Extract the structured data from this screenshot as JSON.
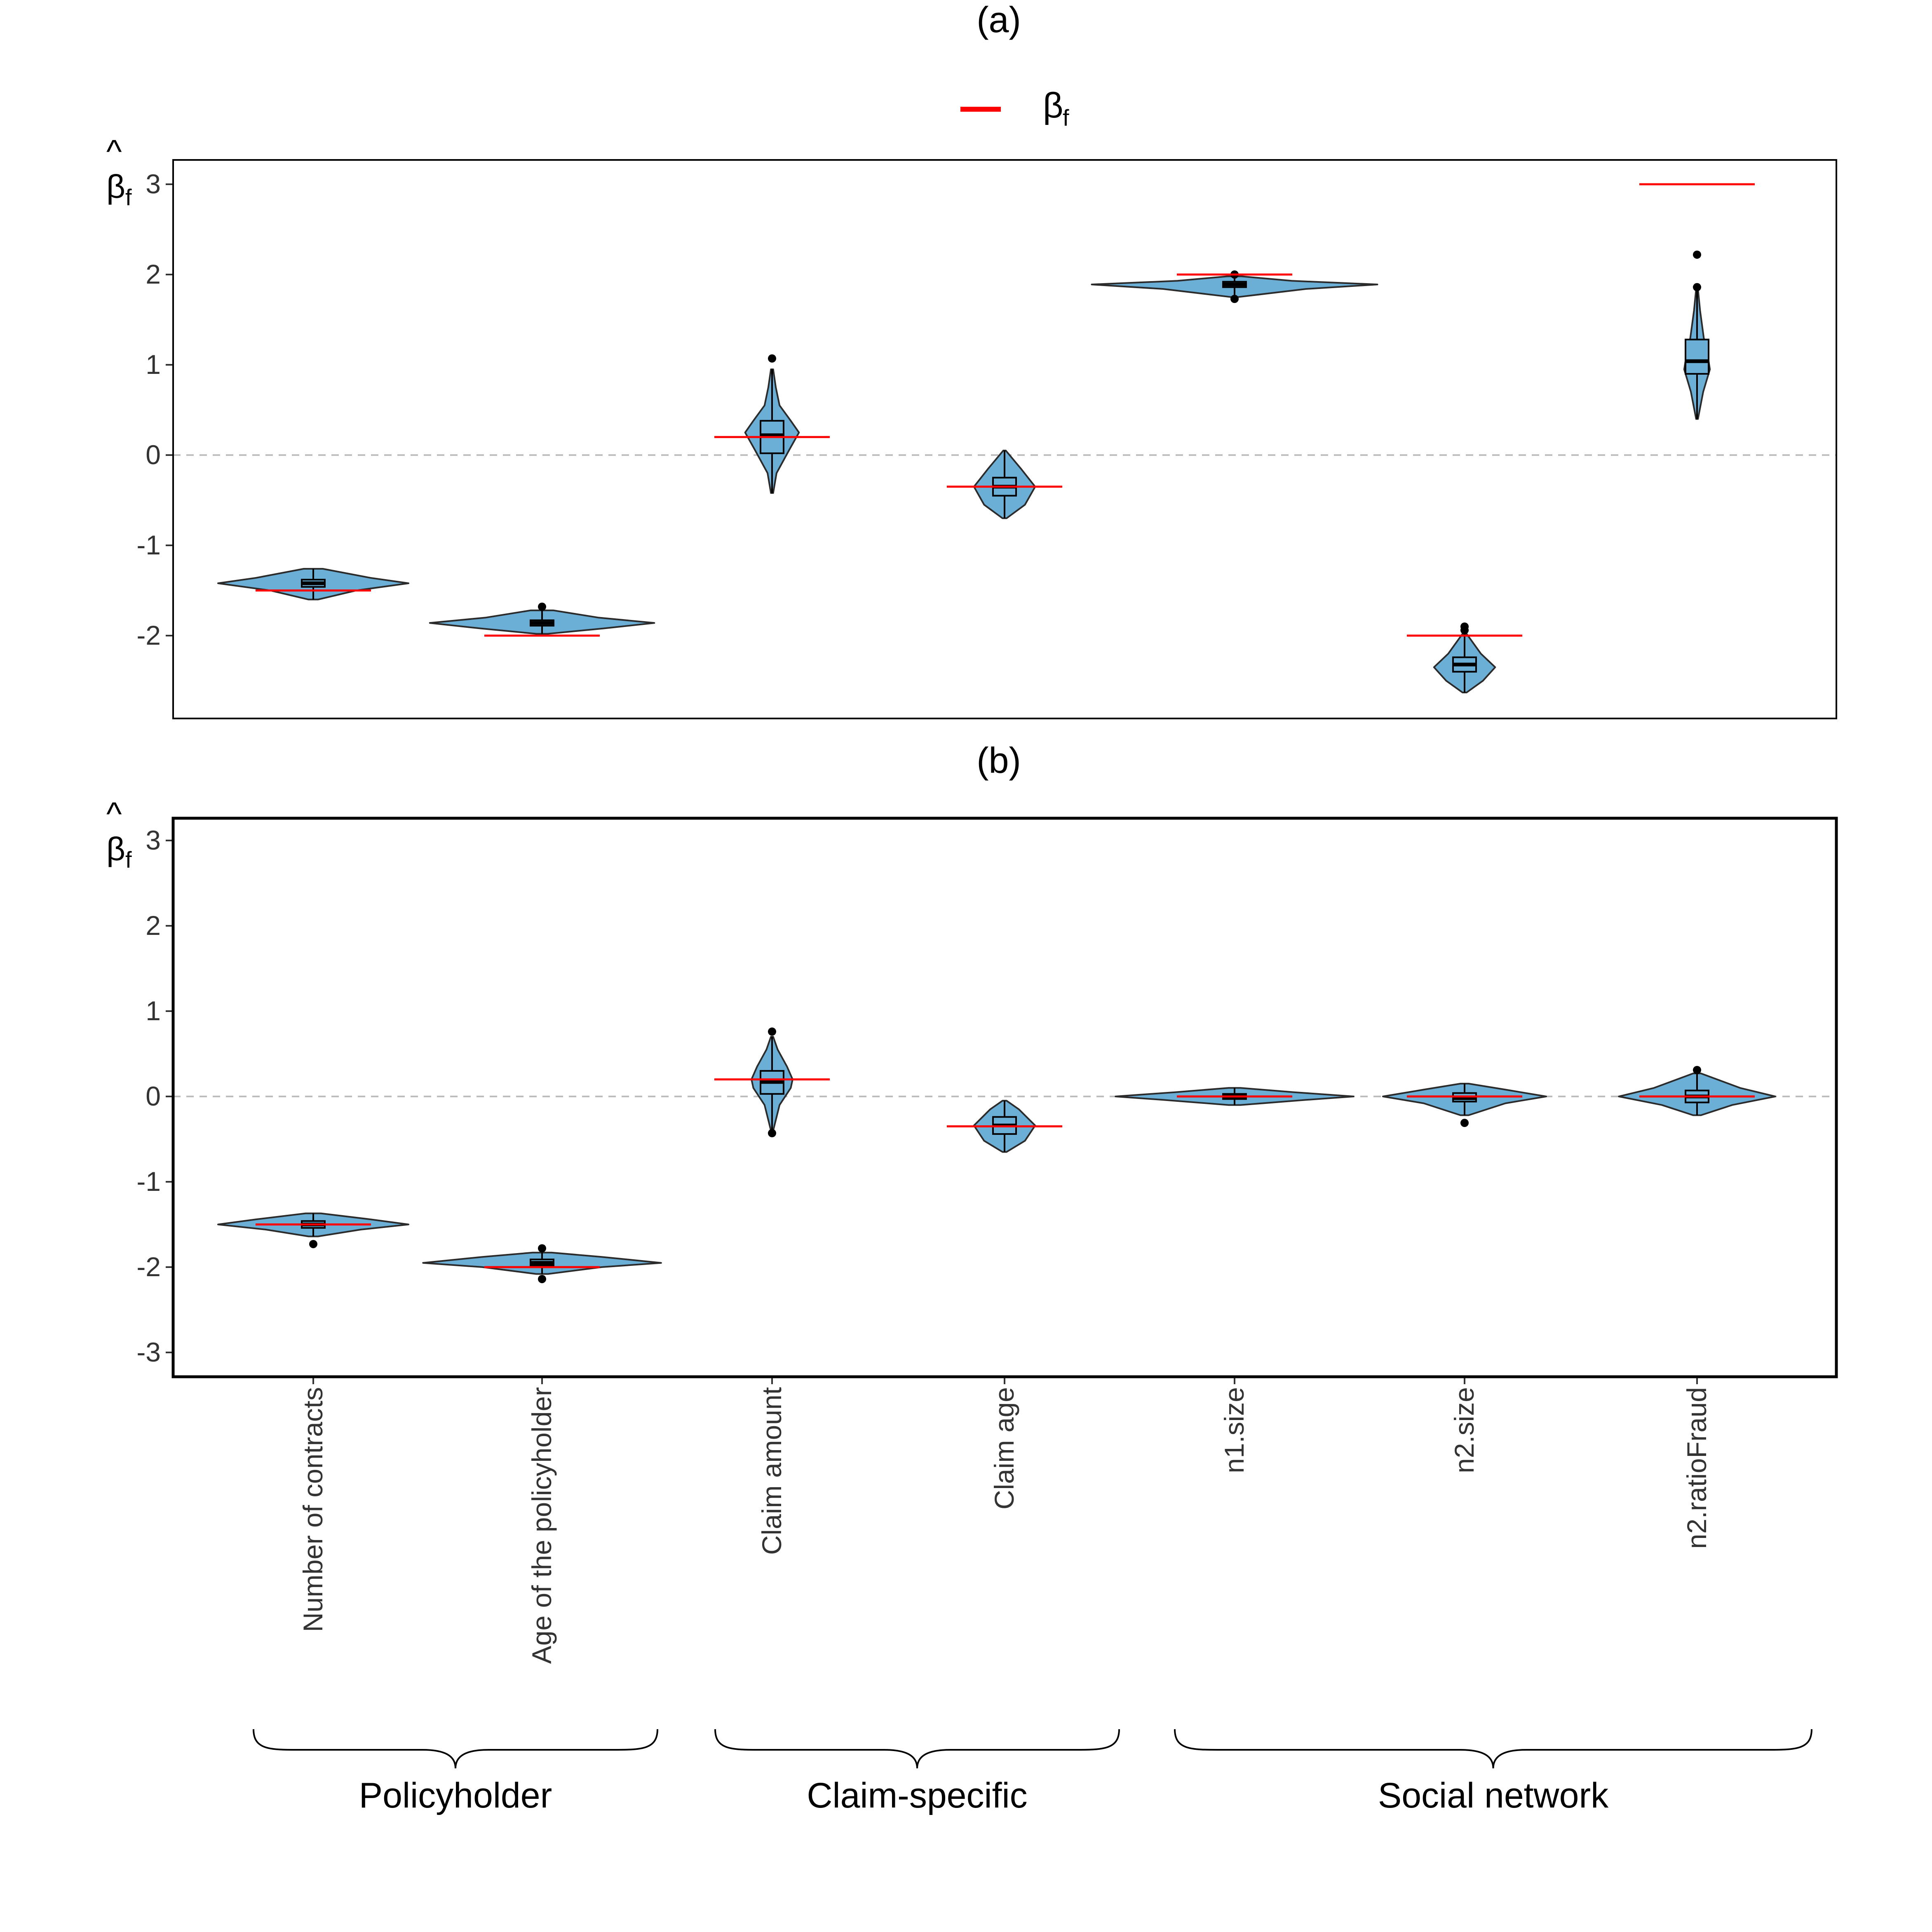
{
  "chart_data": {
    "type": "violin",
    "legend": {
      "symbol": "β",
      "subscript": "f",
      "color": "#ff0000",
      "position": "top-center"
    },
    "y_axis_label": {
      "symbol": "β",
      "hat": "^",
      "subscript": "f"
    },
    "categories": [
      "Number of contracts",
      "Age of the policyholder",
      "Claim amount",
      "Claim age",
      "n1.size",
      "n2.size",
      "n2.ratioFraud"
    ],
    "groups": [
      {
        "label": "Policyholder",
        "categories": [
          0,
          1
        ]
      },
      {
        "label": "Claim-specific",
        "categories": [
          2,
          3
        ]
      },
      {
        "label": "Social network",
        "categories": [
          4,
          5,
          6
        ]
      }
    ],
    "colors": {
      "violin_fill": "#6baed6",
      "violin_stroke": "#2b2b2b",
      "true_value": "#ff0000",
      "zero_line": "#bdbdbd"
    },
    "panels": [
      {
        "title": "(a)",
        "ylim": [
          -2.9,
          3.3
        ],
        "yticks": [
          -2,
          -1,
          0,
          1,
          2,
          3
        ],
        "ytick_labels": [
          "-2",
          "-1",
          "0",
          "1",
          "2",
          "3"
        ],
        "true_values": [
          -1.5,
          -2,
          0.2,
          -0.35,
          2,
          -2,
          3
        ],
        "series": [
          {
            "min": -1.6,
            "q1": -1.46,
            "median": -1.42,
            "q3": -1.38,
            "max": -1.26,
            "outliers": [],
            "density": [
              [
                -1.6,
                0.05
              ],
              [
                -1.5,
                0.45
              ],
              [
                -1.42,
                1.0
              ],
              [
                -1.36,
                0.6
              ],
              [
                -1.26,
                0.1
              ]
            ],
            "width": 1.4
          },
          {
            "min": -1.98,
            "q1": -1.89,
            "median": -1.86,
            "q3": -1.83,
            "max": -1.72,
            "outliers": [
              -1.68
            ],
            "density": [
              [
                -1.98,
                0.05
              ],
              [
                -1.92,
                0.55
              ],
              [
                -1.86,
                1.0
              ],
              [
                -1.8,
                0.5
              ],
              [
                -1.72,
                0.1
              ]
            ],
            "width": 1.65
          },
          {
            "min": -0.42,
            "q1": 0.02,
            "median": 0.22,
            "q3": 0.38,
            "max": 0.95,
            "outliers": [
              1.07
            ],
            "density": [
              [
                -0.42,
                0.03
              ],
              [
                -0.2,
                0.12
              ],
              [
                0.05,
                0.45
              ],
              [
                0.25,
                0.72
              ],
              [
                0.38,
                0.5
              ],
              [
                0.55,
                0.2
              ],
              [
                0.75,
                0.1
              ],
              [
                0.95,
                0.03
              ]
            ],
            "width": 0.55
          },
          {
            "min": -0.7,
            "q1": -0.45,
            "median": -0.35,
            "q3": -0.25,
            "max": 0.05,
            "outliers": [],
            "density": [
              [
                -0.7,
                0.05
              ],
              [
                -0.55,
                0.5
              ],
              [
                -0.35,
                0.75
              ],
              [
                -0.15,
                0.4
              ],
              [
                0.05,
                0.03
              ]
            ],
            "width": 0.6
          },
          {
            "min": 1.75,
            "q1": 1.86,
            "median": 1.89,
            "q3": 1.92,
            "max": 1.98,
            "outliers": [
              1.73,
              2.0
            ],
            "density": [
              [
                1.75,
                0.02
              ],
              [
                1.84,
                0.5
              ],
              [
                1.89,
                1.0
              ],
              [
                1.93,
                0.4
              ],
              [
                1.98,
                0.05
              ]
            ],
            "width": 2.1
          },
          {
            "min": -2.63,
            "q1": -2.4,
            "median": -2.32,
            "q3": -2.24,
            "max": -1.98,
            "outliers": [
              -1.9,
              -1.94
            ],
            "density": [
              [
                -2.63,
                0.05
              ],
              [
                -2.5,
                0.45
              ],
              [
                -2.35,
                0.75
              ],
              [
                -2.2,
                0.4
              ],
              [
                -1.98,
                0.05
              ]
            ],
            "width": 0.6
          },
          {
            "min": 0.4,
            "q1": 0.9,
            "median": 1.04,
            "q3": 1.28,
            "max": 1.84,
            "outliers": [
              1.86,
              2.22
            ],
            "density": [
              [
                0.4,
                0.03
              ],
              [
                0.7,
                0.2
              ],
              [
                0.95,
                0.42
              ],
              [
                1.1,
                0.35
              ],
              [
                1.3,
                0.22
              ],
              [
                1.6,
                0.1
              ],
              [
                1.84,
                0.03
              ]
            ],
            "width": 0.45
          }
        ]
      },
      {
        "title": "(b)",
        "ylim": [
          -3.3,
          3.3
        ],
        "yticks": [
          -3,
          -2,
          -1,
          0,
          1,
          2,
          3
        ],
        "ytick_labels": [
          "-3",
          "-2",
          "-1",
          "0",
          "1",
          "2",
          "3"
        ],
        "true_values": [
          -1.5,
          -2,
          0.2,
          -0.35,
          0,
          0,
          0
        ],
        "series": [
          {
            "min": -1.64,
            "q1": -1.54,
            "median": -1.5,
            "q3": -1.46,
            "max": -1.37,
            "outliers": [
              -1.73
            ],
            "density": [
              [
                -1.64,
                0.05
              ],
              [
                -1.56,
                0.5
              ],
              [
                -1.5,
                1.0
              ],
              [
                -1.44,
                0.6
              ],
              [
                -1.37,
                0.08
              ]
            ],
            "width": 1.4
          },
          {
            "min": -2.08,
            "q1": -1.98,
            "median": -1.95,
            "q3": -1.91,
            "max": -1.83,
            "outliers": [
              -1.78,
              -2.14
            ],
            "density": [
              [
                -2.08,
                0.05
              ],
              [
                -2.0,
                0.5
              ],
              [
                -1.95,
                1.0
              ],
              [
                -1.88,
                0.5
              ],
              [
                -1.83,
                0.08
              ]
            ],
            "width": 1.75
          },
          {
            "min": -0.4,
            "q1": 0.03,
            "median": 0.17,
            "q3": 0.3,
            "max": 0.7,
            "outliers": [
              0.76,
              -0.43
            ],
            "density": [
              [
                -0.4,
                0.03
              ],
              [
                -0.1,
                0.2
              ],
              [
                0.1,
                0.5
              ],
              [
                0.2,
                0.55
              ],
              [
                0.35,
                0.4
              ],
              [
                0.55,
                0.15
              ],
              [
                0.7,
                0.03
              ]
            ],
            "width": 0.55
          },
          {
            "min": -0.65,
            "q1": -0.44,
            "median": -0.34,
            "q3": -0.24,
            "max": -0.05,
            "outliers": [],
            "density": [
              [
                -0.65,
                0.05
              ],
              [
                -0.52,
                0.5
              ],
              [
                -0.34,
                0.75
              ],
              [
                -0.15,
                0.35
              ],
              [
                -0.05,
                0.05
              ]
            ],
            "width": 0.6
          },
          {
            "min": -0.1,
            "q1": -0.03,
            "median": 0.0,
            "q3": 0.03,
            "max": 0.1,
            "outliers": [],
            "density": [
              [
                -0.1,
                0.05
              ],
              [
                -0.04,
                0.6
              ],
              [
                0.0,
                1.0
              ],
              [
                0.05,
                0.5
              ],
              [
                0.1,
                0.05
              ]
            ],
            "width": 1.75
          },
          {
            "min": -0.22,
            "q1": -0.06,
            "median": -0.02,
            "q3": 0.04,
            "max": 0.15,
            "outliers": [
              -0.31
            ],
            "density": [
              [
                -0.22,
                0.05
              ],
              [
                -0.08,
                0.5
              ],
              [
                0.0,
                1.0
              ],
              [
                0.08,
                0.5
              ],
              [
                0.15,
                0.05
              ]
            ],
            "width": 1.2
          },
          {
            "min": -0.22,
            "q1": -0.07,
            "median": 0.0,
            "q3": 0.07,
            "max": 0.27,
            "outliers": [
              0.31
            ],
            "density": [
              [
                -0.22,
                0.05
              ],
              [
                -0.1,
                0.45
              ],
              [
                0.0,
                1.0
              ],
              [
                0.1,
                0.55
              ],
              [
                0.27,
                0.05
              ]
            ],
            "width": 1.15
          }
        ]
      }
    ]
  }
}
